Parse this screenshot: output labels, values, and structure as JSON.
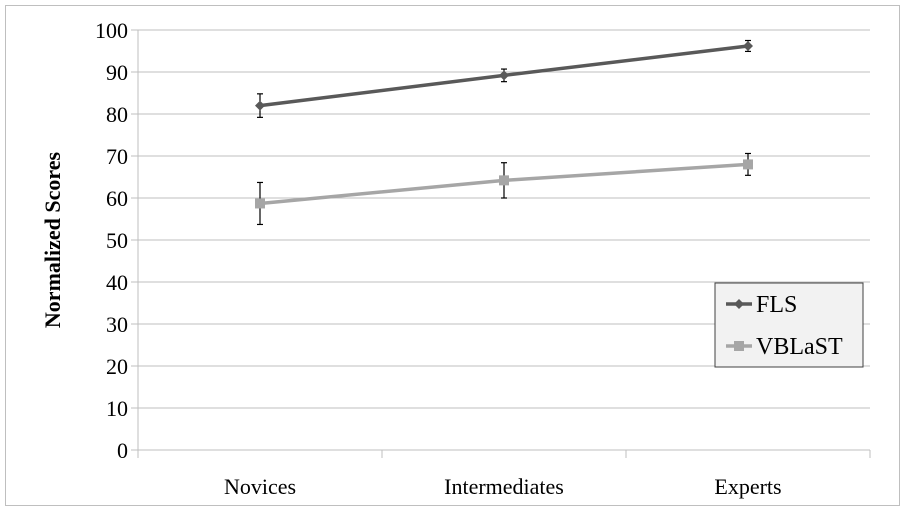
{
  "chart_data": {
    "type": "line",
    "title": "",
    "xlabel": "",
    "ylabel": "Normalized Scores",
    "ylim": [
      0,
      100
    ],
    "yticks": [
      0,
      10,
      20,
      30,
      40,
      50,
      60,
      70,
      80,
      90,
      100
    ],
    "categories": [
      "Novices",
      "Intermediates",
      "Experts"
    ],
    "grid": true,
    "legend_position": "right",
    "series": [
      {
        "name": "FLS",
        "color": "#595959",
        "marker": "diamond",
        "values": [
          82,
          89.2,
          96.2
        ],
        "error": [
          2.8,
          1.5,
          1.3
        ]
      },
      {
        "name": "VBLaST",
        "color": "#a6a6a6",
        "marker": "square",
        "values": [
          58.7,
          64.2,
          68.0
        ],
        "error": [
          5.0,
          4.2,
          2.6
        ]
      }
    ]
  }
}
